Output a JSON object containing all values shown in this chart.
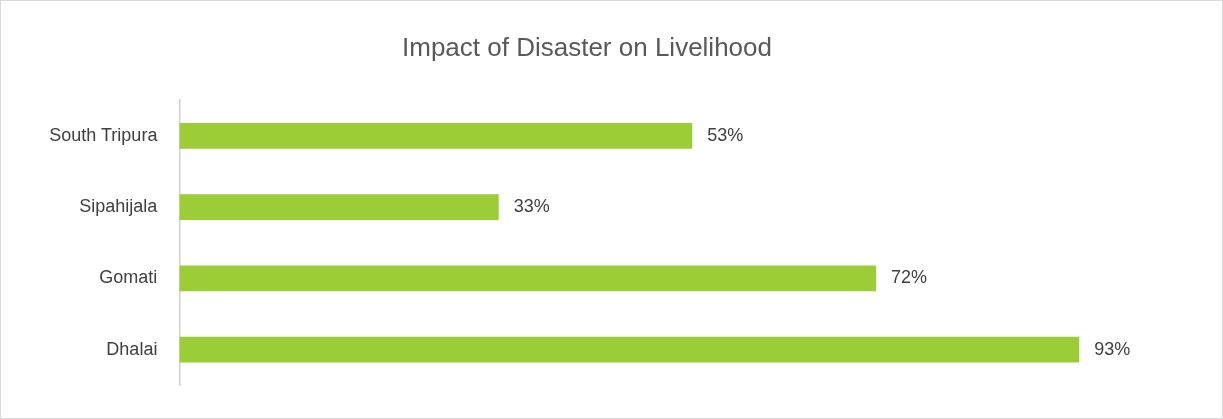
{
  "chart_data": {
    "type": "bar",
    "orientation": "horizontal",
    "title": "Impact of Disaster on Livelihood",
    "categories": [
      "South Tripura",
      "Sipahijala",
      "Gomati",
      "Dhalai"
    ],
    "values": [
      53,
      33,
      72,
      93
    ],
    "color": "#9acd36",
    "value_labels": [
      "53%",
      "33%",
      "72%",
      "93%"
    ],
    "legend": false
  }
}
